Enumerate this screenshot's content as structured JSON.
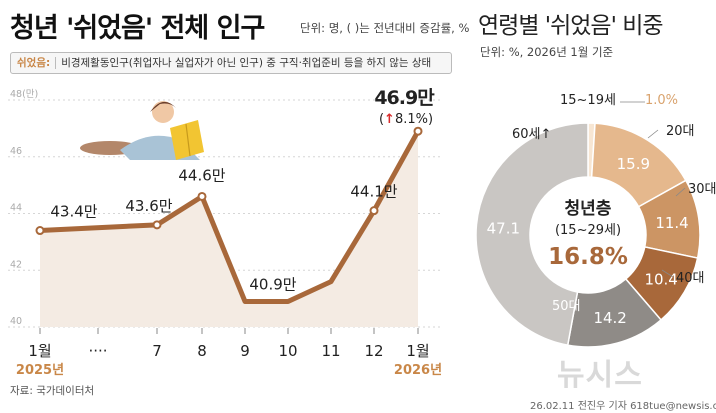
{
  "header": {
    "title": "청년 '쉬었음' 전체 인구",
    "unit": "단위: 명, ( )는 전년대비 증감률, %"
  },
  "definition": {
    "term": "쉬었음:",
    "text": "비경제활동인구(취업자나 실업자가 아닌 인구) 중 구직·취업준비 등을 하지 않는 상태"
  },
  "right_header": {
    "title": "연령별 '쉬었음' 비중",
    "unit": "단위: %, 2026년 1월 기준"
  },
  "source": "자료: 국가데이터처",
  "credit": "26.02.11 전진우 기자 618tue@newsis.com",
  "watermark": "뉴시스",
  "colors": {
    "line": "#a8683a",
    "area": "#f4ebe3",
    "year_label": "#c98748",
    "up_arrow": "#d92b2b",
    "donut_center": "#a8683a",
    "young_label": "#d9a36e"
  },
  "chart_data": [
    {
      "type": "line",
      "categories": [
        "1월",
        "····",
        "7",
        "8",
        "9",
        "10",
        "11",
        "12",
        "1월"
      ],
      "values": [
        43.4,
        null,
        43.6,
        44.6,
        40.9,
        40.9,
        41.6,
        44.1,
        46.9
      ],
      "data_labels": [
        {
          "index": 0,
          "text": "43.4만"
        },
        {
          "index": 2,
          "text": "43.6만"
        },
        {
          "index": 3,
          "text": "44.6만"
        },
        {
          "index": 4,
          "text": "40.9만"
        },
        {
          "index": 7,
          "text": "44.1만"
        },
        {
          "index": 8,
          "text": "46.9만"
        }
      ],
      "highlight_change": "8.1%)",
      "highlight_change_prefix": "(",
      "up_arrow": "↑",
      "year_labels": [
        {
          "index": 0,
          "text": "2025년"
        },
        {
          "index": 8,
          "text": "2026년"
        }
      ],
      "ylim": [
        40,
        48
      ],
      "yticks": [
        "40",
        "42",
        "44",
        "46",
        "48(만)"
      ],
      "xlabel": "",
      "ylabel": ""
    },
    {
      "type": "pie",
      "donut": true,
      "slices": [
        {
          "label": "15~19세",
          "value": 1.0,
          "color": "#f7e6d3"
        },
        {
          "label": "20대",
          "value": 15.9,
          "color": "#e5b88d"
        },
        {
          "label": "30대",
          "value": 11.4,
          "color": "#cc9564"
        },
        {
          "label": "40대",
          "value": 10.4,
          "color": "#a8683a"
        },
        {
          "label": "50대",
          "value": 14.2,
          "color": "#8f8b87"
        },
        {
          "label": "60세↑",
          "value": 47.1,
          "color": "#c9c6c3"
        }
      ],
      "value_labels": [
        "15.9",
        "11.4",
        "10.4",
        "14.2",
        "47.1"
      ],
      "young_value": "1.0%",
      "center": {
        "title": "청년층",
        "subtitle": "(15~29세)",
        "value": "16.8%"
      }
    }
  ]
}
